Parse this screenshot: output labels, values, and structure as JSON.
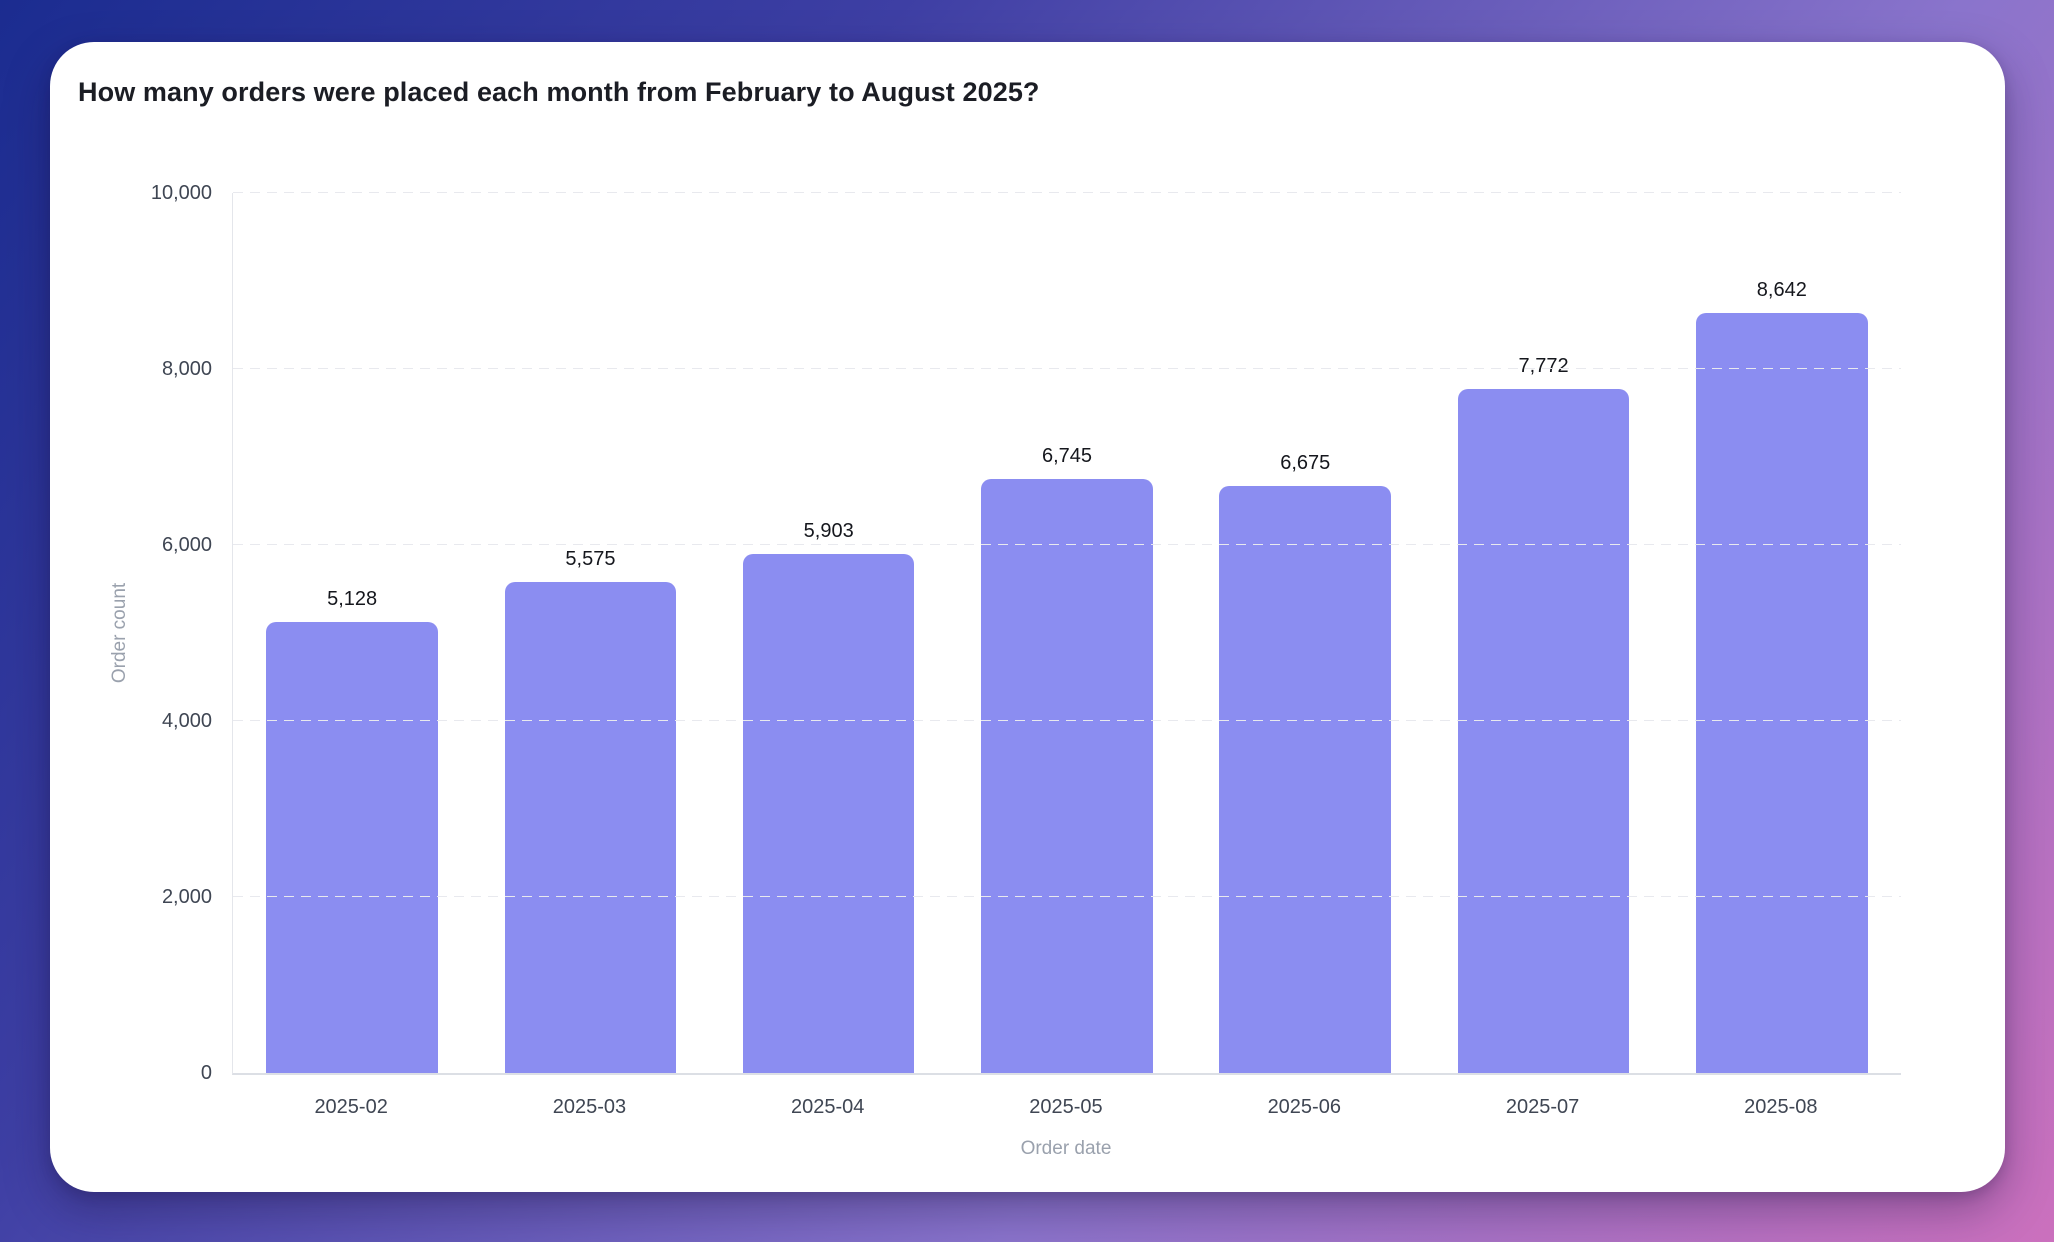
{
  "title": "How many orders were placed each month from February to August 2025?",
  "colors": {
    "bar": "#8b8df1",
    "card_bg": "#ffffff",
    "bg_gradient_start": "#1b2c90",
    "bg_gradient_mid1": "#3e3fa4",
    "bg_gradient_mid2": "#8a74cc",
    "bg_gradient_end": "#cb70bd",
    "tick_text": "#3f4653",
    "axis_title_text": "#9aa1ad",
    "value_label_text": "#15171d",
    "gridline": "#e8e9ee"
  },
  "chart_data": {
    "type": "bar",
    "title": "How many orders were placed each month from February to August 2025?",
    "categories": [
      "2025-02",
      "2025-03",
      "2025-04",
      "2025-05",
      "2025-06",
      "2025-07",
      "2025-08"
    ],
    "values": [
      5128,
      5575,
      5903,
      6745,
      6675,
      7772,
      8642
    ],
    "value_labels": [
      "5,128",
      "5,575",
      "5,903",
      "6,745",
      "6,675",
      "7,772",
      "8,642"
    ],
    "xlabel": "Order date",
    "ylabel": "Order count",
    "ylim": [
      0,
      10000
    ],
    "yticks": [
      0,
      2000,
      4000,
      6000,
      8000,
      10000
    ],
    "ytick_labels": [
      "0",
      "2,000",
      "4,000",
      "6,000",
      "8,000",
      "10,000"
    ],
    "grid": true,
    "gridline_style": "dashed",
    "legend": false,
    "bar_color": "#8b8df1",
    "value_labels_shown": true
  }
}
